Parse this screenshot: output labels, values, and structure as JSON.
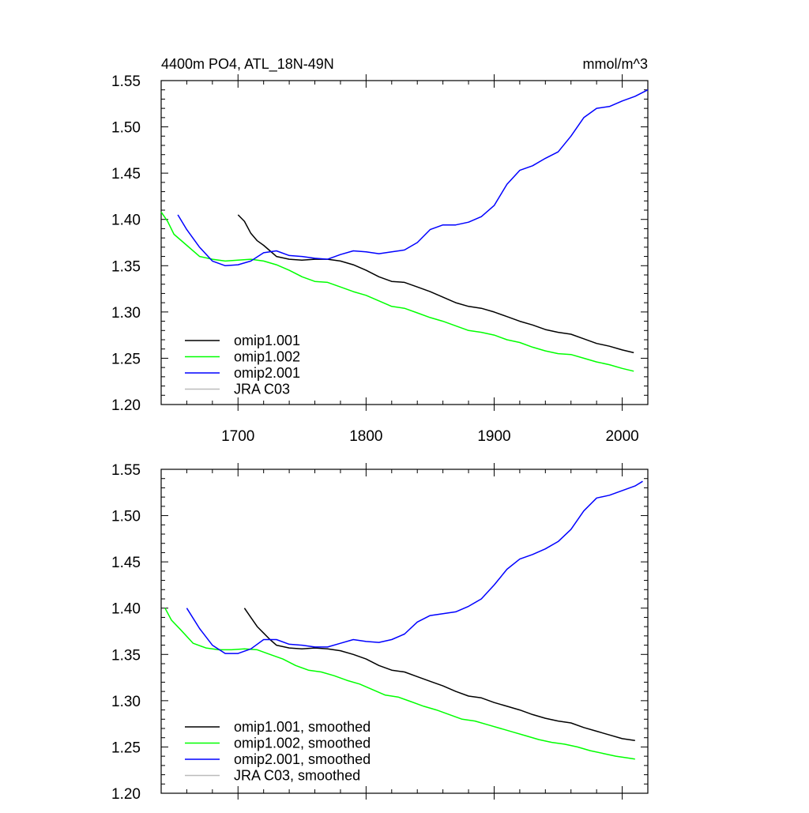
{
  "chart_data": [
    {
      "type": "line",
      "title": "4400m PO4, ATL_18N-49N",
      "units": "mmol/m^3",
      "xlim": [
        1640,
        2020
      ],
      "ylim": [
        1.2,
        1.55
      ],
      "xticks": [
        "1700",
        "1800",
        "1900",
        "2000"
      ],
      "xtick_values": [
        1700,
        1800,
        1900,
        2000
      ],
      "yticks": [
        "1.20",
        "1.25",
        "1.30",
        "1.35",
        "1.40",
        "1.45",
        "1.50",
        "1.55"
      ],
      "ytick_values": [
        1.2,
        1.25,
        1.3,
        1.35,
        1.4,
        1.45,
        1.5,
        1.55
      ],
      "legend_position": "bottom-left",
      "series": [
        {
          "name": "omip1.001",
          "color": "#000000",
          "x": [
            1700,
            1705,
            1710,
            1715,
            1720,
            1725,
            1730,
            1740,
            1750,
            1760,
            1770,
            1780,
            1790,
            1800,
            1810,
            1820,
            1830,
            1840,
            1850,
            1860,
            1870,
            1880,
            1890,
            1900,
            1910,
            1920,
            1930,
            1940,
            1950,
            1960,
            1970,
            1980,
            1990,
            2000,
            2009
          ],
          "y": [
            1.405,
            1.398,
            1.385,
            1.377,
            1.372,
            1.366,
            1.36,
            1.357,
            1.356,
            1.357,
            1.357,
            1.355,
            1.351,
            1.345,
            1.338,
            1.333,
            1.332,
            1.327,
            1.322,
            1.316,
            1.31,
            1.306,
            1.304,
            1.3,
            1.295,
            1.29,
            1.286,
            1.281,
            1.278,
            1.276,
            1.271,
            1.266,
            1.263,
            1.259,
            1.256
          ]
        },
        {
          "name": "omip1.002",
          "color": "#00ff00",
          "x": [
            1640,
            1645,
            1650,
            1660,
            1670,
            1680,
            1690,
            1700,
            1710,
            1720,
            1730,
            1740,
            1750,
            1760,
            1770,
            1780,
            1790,
            1800,
            1810,
            1820,
            1830,
            1840,
            1850,
            1860,
            1870,
            1880,
            1890,
            1900,
            1910,
            1920,
            1930,
            1940,
            1950,
            1960,
            1970,
            1980,
            1990,
            2000,
            2009
          ],
          "y": [
            1.408,
            1.398,
            1.384,
            1.372,
            1.36,
            1.357,
            1.355,
            1.356,
            1.357,
            1.355,
            1.351,
            1.345,
            1.338,
            1.333,
            1.332,
            1.327,
            1.322,
            1.318,
            1.312,
            1.306,
            1.304,
            1.299,
            1.294,
            1.29,
            1.285,
            1.28,
            1.278,
            1.275,
            1.27,
            1.267,
            1.262,
            1.258,
            1.255,
            1.254,
            1.25,
            1.246,
            1.243,
            1.239,
            1.236
          ]
        },
        {
          "name": "omip2.001",
          "color": "#0000ff",
          "x": [
            1653,
            1660,
            1670,
            1680,
            1690,
            1700,
            1710,
            1720,
            1730,
            1740,
            1750,
            1760,
            1770,
            1780,
            1790,
            1800,
            1810,
            1820,
            1830,
            1840,
            1850,
            1860,
            1870,
            1880,
            1890,
            1900,
            1910,
            1920,
            1930,
            1940,
            1950,
            1960,
            1970,
            1980,
            1990,
            2000,
            2010,
            2020
          ],
          "y": [
            1.405,
            1.389,
            1.37,
            1.355,
            1.35,
            1.351,
            1.355,
            1.364,
            1.366,
            1.361,
            1.36,
            1.358,
            1.357,
            1.362,
            1.366,
            1.365,
            1.363,
            1.365,
            1.367,
            1.375,
            1.389,
            1.394,
            1.394,
            1.397,
            1.403,
            1.415,
            1.438,
            1.453,
            1.458,
            1.466,
            1.473,
            1.49,
            1.51,
            1.52,
            1.522,
            1.528,
            1.533,
            1.54
          ]
        },
        {
          "name": "JRA C03",
          "color": "#bbbbbb",
          "x": [],
          "y": []
        }
      ]
    },
    {
      "type": "line",
      "xlim": [
        1640,
        2020
      ],
      "ylim": [
        1.2,
        1.55
      ],
      "yticks": [
        "1.20",
        "1.25",
        "1.30",
        "1.35",
        "1.40",
        "1.45",
        "1.50",
        "1.55"
      ],
      "ytick_values": [
        1.2,
        1.25,
        1.3,
        1.35,
        1.4,
        1.45,
        1.5,
        1.55
      ],
      "legend_position": "bottom-left",
      "series": [
        {
          "name": "omip1.001, smoothed",
          "color": "#000000",
          "x": [
            1705,
            1710,
            1715,
            1720,
            1725,
            1730,
            1740,
            1750,
            1760,
            1770,
            1780,
            1790,
            1800,
            1810,
            1820,
            1830,
            1840,
            1850,
            1860,
            1870,
            1880,
            1890,
            1900,
            1910,
            1920,
            1930,
            1940,
            1950,
            1960,
            1970,
            1980,
            1990,
            2000,
            2010
          ],
          "y": [
            1.4,
            1.39,
            1.38,
            1.373,
            1.366,
            1.36,
            1.357,
            1.356,
            1.357,
            1.356,
            1.354,
            1.35,
            1.345,
            1.338,
            1.333,
            1.331,
            1.326,
            1.321,
            1.316,
            1.31,
            1.305,
            1.303,
            1.298,
            1.294,
            1.29,
            1.285,
            1.281,
            1.278,
            1.276,
            1.271,
            1.267,
            1.263,
            1.259,
            1.257
          ]
        },
        {
          "name": "omip1.002, smoothed",
          "color": "#00ff00",
          "x": [
            1643,
            1648,
            1655,
            1665,
            1675,
            1685,
            1695,
            1705,
            1715,
            1725,
            1735,
            1745,
            1755,
            1765,
            1775,
            1785,
            1795,
            1805,
            1815,
            1825,
            1835,
            1845,
            1855,
            1865,
            1875,
            1885,
            1895,
            1905,
            1915,
            1925,
            1935,
            1945,
            1955,
            1965,
            1975,
            1985,
            1995,
            2005,
            2010
          ],
          "y": [
            1.4,
            1.387,
            1.377,
            1.362,
            1.357,
            1.355,
            1.355,
            1.356,
            1.355,
            1.35,
            1.345,
            1.338,
            1.333,
            1.331,
            1.327,
            1.322,
            1.318,
            1.312,
            1.306,
            1.304,
            1.299,
            1.294,
            1.29,
            1.285,
            1.28,
            1.278,
            1.274,
            1.27,
            1.266,
            1.262,
            1.258,
            1.255,
            1.253,
            1.25,
            1.246,
            1.243,
            1.24,
            1.238,
            1.237
          ]
        },
        {
          "name": "omip2.001, smoothed",
          "color": "#0000ff",
          "x": [
            1660,
            1670,
            1680,
            1690,
            1700,
            1710,
            1720,
            1730,
            1740,
            1750,
            1760,
            1770,
            1780,
            1790,
            1800,
            1810,
            1820,
            1830,
            1840,
            1850,
            1860,
            1870,
            1880,
            1890,
            1900,
            1910,
            1920,
            1930,
            1940,
            1950,
            1960,
            1970,
            1980,
            1990,
            2000,
            2010,
            2016
          ],
          "y": [
            1.4,
            1.378,
            1.36,
            1.351,
            1.351,
            1.356,
            1.366,
            1.366,
            1.361,
            1.36,
            1.358,
            1.358,
            1.362,
            1.366,
            1.364,
            1.363,
            1.366,
            1.372,
            1.385,
            1.392,
            1.394,
            1.396,
            1.402,
            1.41,
            1.425,
            1.442,
            1.453,
            1.458,
            1.464,
            1.472,
            1.485,
            1.505,
            1.519,
            1.522,
            1.527,
            1.532,
            1.537
          ]
        },
        {
          "name": "JRA C03, smoothed",
          "color": "#bbbbbb",
          "x": [],
          "y": []
        }
      ]
    }
  ]
}
